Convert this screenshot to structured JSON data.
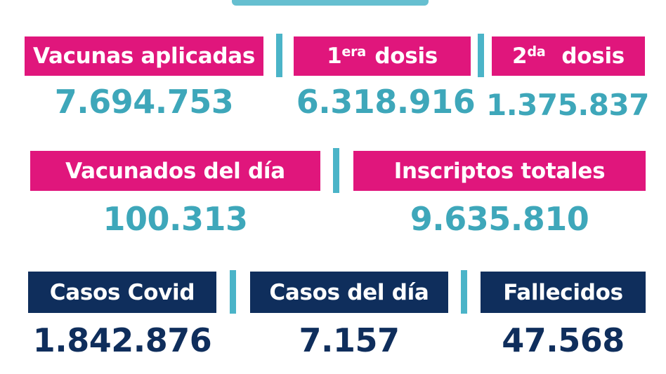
{
  "colors": {
    "pink": "#e0167c",
    "navy": "#0f2e5c",
    "teal": "#3ea7ba",
    "divider": "#4bb4c8"
  },
  "row1": {
    "vacunas_aplicadas": {
      "label": "Vacunas aplicadas",
      "value": "7.694.753"
    },
    "primera_dosis": {
      "label_num": "1",
      "label_sup": "era",
      "label_rest": "dosis",
      "value": "6.318.916"
    },
    "segunda_dosis": {
      "label_num": "2",
      "label_sup": "da",
      "label_rest": "dosis",
      "value": "1.375.837"
    }
  },
  "row2": {
    "vacunados_del_dia": {
      "label": "Vacunados del día",
      "value": "100.313"
    },
    "inscriptos_totales": {
      "label": "Inscriptos totales",
      "value": "9.635.810"
    }
  },
  "row3": {
    "casos_covid": {
      "label": "Casos Covid",
      "value": "1.842.876"
    },
    "casos_del_dia": {
      "label": "Casos del día",
      "value": "7.157"
    },
    "fallecidos": {
      "label": "Fallecidos",
      "value": "47.568"
    }
  }
}
